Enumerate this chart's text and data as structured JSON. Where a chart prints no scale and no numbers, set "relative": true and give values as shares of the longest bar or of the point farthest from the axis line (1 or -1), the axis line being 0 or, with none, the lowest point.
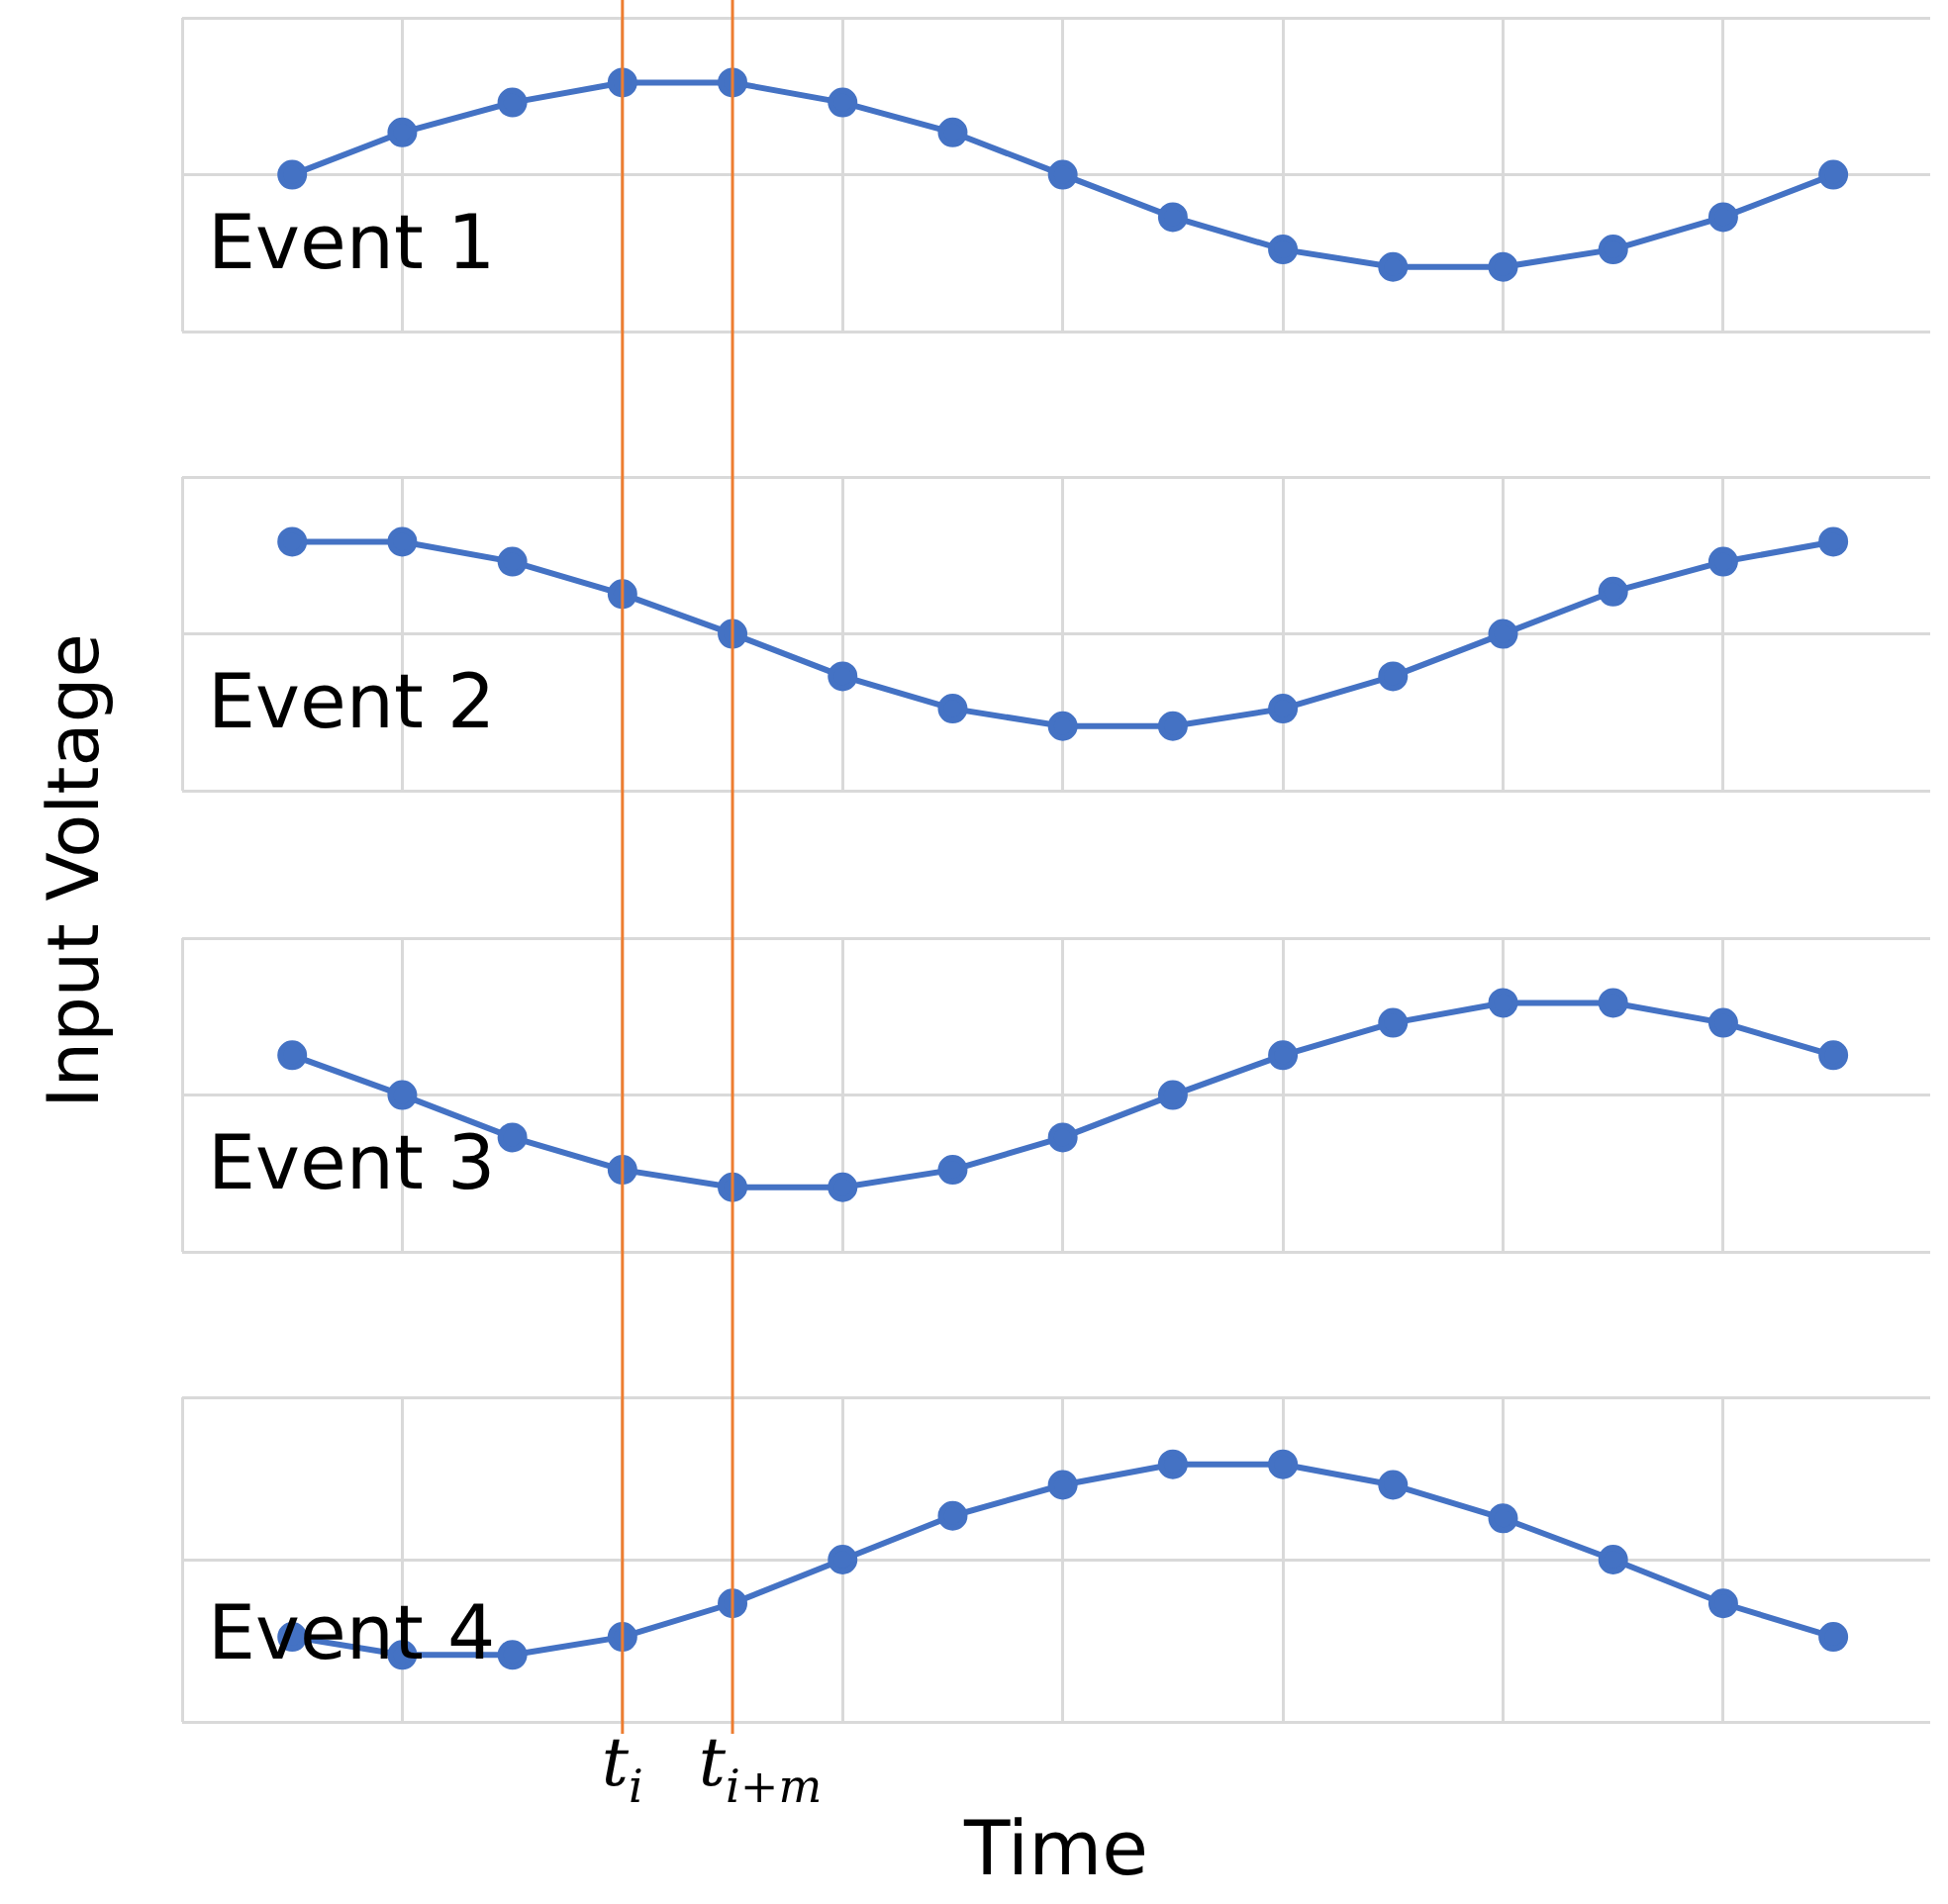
{
  "chart_data": [
    {
      "type": "line",
      "ylabel": "Input Voltage",
      "categories": [
        null,
        null,
        null,
        null,
        null,
        null,
        null,
        null,
        null,
        null,
        null,
        null,
        null,
        null,
        null
      ],
      "values": [
        0.63,
        0.8,
        0.92,
        1,
        1,
        0.92,
        0.8,
        0.63,
        0.46,
        0.33,
        0.26,
        0.26,
        0.33,
        0.46,
        0.63
      ],
      "color": "#4472c4",
      "relative": true,
      "grid": true,
      "marker": "circle",
      "annotations": [
        "Event 1"
      ]
    },
    {
      "type": "line",
      "categories": [
        null,
        null,
        null,
        null,
        null,
        null,
        null,
        null,
        null,
        null,
        null,
        null,
        null,
        null,
        null
      ],
      "values": [
        1,
        1,
        0.92,
        0.79,
        0.63,
        0.46,
        0.33,
        0.26,
        0.26,
        0.33,
        0.46,
        0.63,
        0.8,
        0.92,
        1
      ],
      "color": "#4472c4",
      "relative": true,
      "grid": true,
      "marker": "circle",
      "annotations": [
        "Event 2"
      ]
    },
    {
      "type": "line",
      "categories": [
        null,
        null,
        null,
        null,
        null,
        null,
        null,
        null,
        null,
        null,
        null,
        null,
        null,
        null,
        null
      ],
      "values": [
        0.79,
        0.63,
        0.46,
        0.33,
        0.26,
        0.26,
        0.33,
        0.46,
        0.63,
        0.79,
        0.92,
        1,
        1,
        0.92,
        0.79
      ],
      "color": "#4472c4",
      "relative": true,
      "grid": true,
      "marker": "circle",
      "annotations": [
        "Event 3"
      ]
    },
    {
      "type": "line",
      "xlabel": "Time",
      "categories": [
        null,
        null,
        null,
        null,
        null,
        null,
        null,
        null,
        null,
        null,
        null,
        null,
        null,
        null,
        null
      ],
      "values": [
        0.33,
        0.26,
        0.26,
        0.33,
        0.46,
        0.63,
        0.8,
        0.92,
        1,
        1,
        0.92,
        0.79,
        0.63,
        0.46,
        0.33
      ],
      "color": "#4472c4",
      "relative": true,
      "grid": true,
      "marker": "circle",
      "annotations": [
        "Event 4",
        "t$_{i}$",
        "t$_{i+m}$"
      ]
    }
  ]
}
